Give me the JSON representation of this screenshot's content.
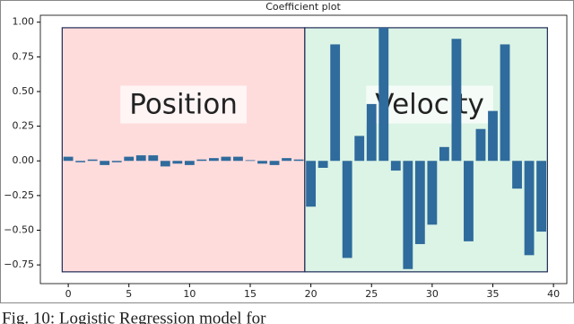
{
  "chart_data": {
    "type": "bar",
    "title": "Coefficient plot",
    "categories": [
      0,
      1,
      2,
      3,
      4,
      5,
      6,
      7,
      8,
      9,
      10,
      11,
      12,
      13,
      14,
      15,
      16,
      17,
      18,
      19,
      20,
      21,
      22,
      23,
      24,
      25,
      26,
      27,
      28,
      29,
      30,
      31,
      32,
      33,
      34,
      35,
      36,
      37,
      38,
      39
    ],
    "values": [
      0.03,
      -0.01,
      0.01,
      -0.03,
      -0.01,
      0.03,
      0.04,
      0.04,
      -0.04,
      -0.02,
      -0.03,
      0.01,
      0.02,
      0.03,
      0.03,
      0.005,
      -0.02,
      -0.03,
      0.02,
      0.01,
      -0.33,
      -0.05,
      0.84,
      -0.7,
      0.18,
      0.41,
      0.96,
      -0.07,
      -0.78,
      -0.6,
      -0.46,
      0.1,
      0.88,
      -0.58,
      0.23,
      0.36,
      0.84,
      -0.2,
      -0.68,
      -0.51
    ],
    "color": "#2f6b9c",
    "xlim": [
      -2.3,
      41.1
    ],
    "ylim": [
      -0.885,
      1.05
    ],
    "xticks": [
      0,
      5,
      10,
      15,
      20,
      25,
      30,
      35,
      40
    ],
    "yticks": [
      {
        "value": 1,
        "label": "1.00"
      },
      {
        "value": 0.75,
        "label": "0.75"
      },
      {
        "value": 0.5,
        "label": "0.50"
      },
      {
        "value": 0.25,
        "label": "0.25"
      },
      {
        "value": 0,
        "label": "0.00"
      },
      {
        "value": -0.25,
        "label": "−0.25"
      },
      {
        "value": -0.5,
        "label": "−0.50"
      },
      {
        "value": -0.75,
        "label": "−0.75"
      }
    ],
    "regions": [
      {
        "label": "Position",
        "start": -0.5,
        "end": 19.5,
        "bottom": -0.8,
        "top": 0.96,
        "color": "#ffdcdc",
        "label_color": "#e8211f"
      },
      {
        "label": "Velocity",
        "start": 19.5,
        "end": 39.5,
        "bottom": -0.8,
        "top": 0.96,
        "color": "#dcf4e6",
        "label_color": "#1aa84a"
      }
    ]
  },
  "caption": "Fig. 10: Logistic Regression model for"
}
